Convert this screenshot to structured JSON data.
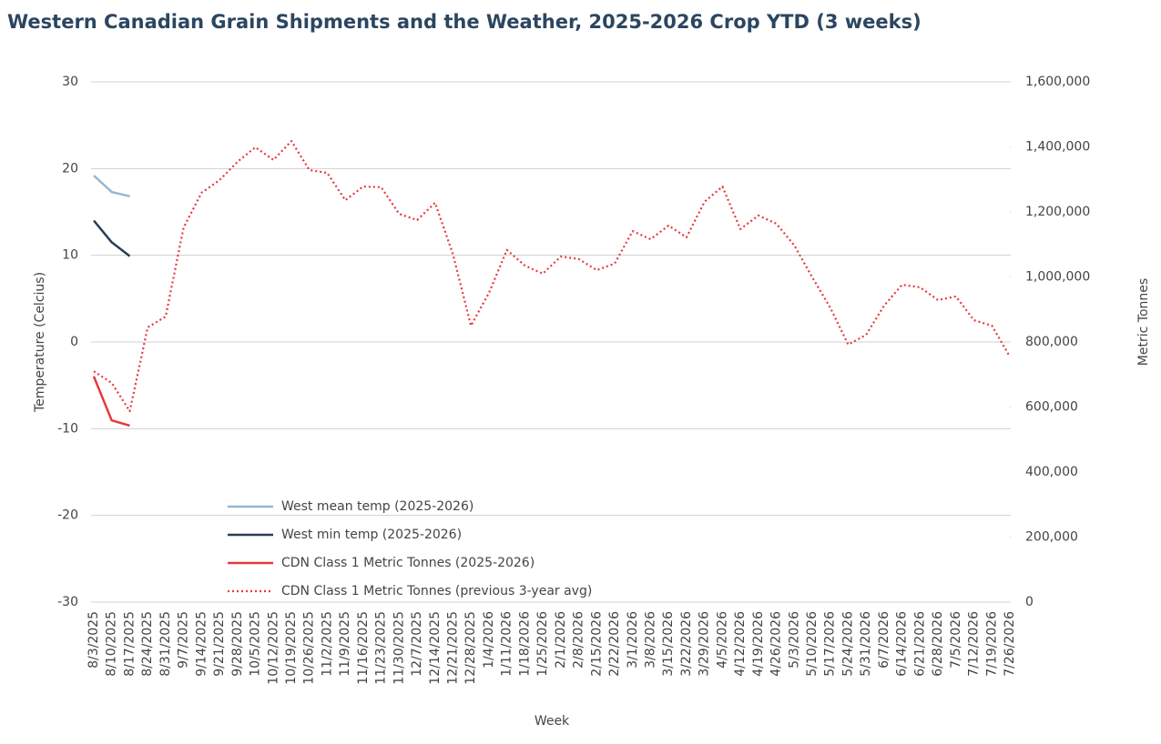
{
  "chart_data": {
    "type": "line",
    "title": "Western Canadian Grain Shipments and the Weather, 2025-2026 Crop YTD (3 weeks)",
    "x_label": "Week",
    "y_label": "Temperature (Celcius)",
    "y2_label": "Metric Tonnes",
    "categories": [
      "8/3/2025",
      "8/10/2025",
      "8/17/2025",
      "8/24/2025",
      "8/31/2025",
      "9/7/2025",
      "9/14/2025",
      "9/21/2025",
      "9/28/2025",
      "10/5/2025",
      "10/12/2025",
      "10/19/2025",
      "10/26/2025",
      "11/2/2025",
      "11/9/2025",
      "11/16/2025",
      "11/23/2025",
      "11/30/2025",
      "12/7/2025",
      "12/14/2025",
      "12/21/2025",
      "12/28/2025",
      "1/4/2026",
      "1/11/2026",
      "1/18/2026",
      "1/25/2026",
      "2/1/2026",
      "2/8/2026",
      "2/15/2026",
      "2/22/2026",
      "3/1/2026",
      "3/8/2026",
      "3/15/2026",
      "3/22/2026",
      "3/29/2026",
      "4/5/2026",
      "4/12/2026",
      "4/19/2026",
      "4/26/2026",
      "5/3/2026",
      "5/10/2026",
      "5/17/2026",
      "5/24/2026",
      "5/31/2026",
      "6/7/2026",
      "6/14/2026",
      "6/21/2026",
      "6/28/2026",
      "7/5/2026",
      "7/12/2026",
      "7/19/2026",
      "7/26/2026"
    ],
    "ylim": [
      -30,
      30
    ],
    "yticks": [
      -30,
      -20,
      -10,
      0,
      10,
      20,
      30
    ],
    "y2lim": [
      0,
      1600000
    ],
    "y2ticks": [
      0,
      {
        "value": 200000,
        "label": "200,000"
      },
      {
        "value": 400000,
        "label": "400,000"
      },
      {
        "value": 600000,
        "label": "600,000"
      },
      {
        "value": 800000,
        "label": "800,000"
      },
      {
        "value": 1000000,
        "label": "1,000,000"
      },
      {
        "value": 1200000,
        "label": "1,200,000"
      },
      {
        "value": 1400000,
        "label": "1,400,000"
      },
      {
        "value": 1600000,
        "label": "1,600,000"
      }
    ],
    "grid": true,
    "series": [
      {
        "name": "West mean temp (2025-2026)",
        "color": "#95b8d1",
        "axis": "y",
        "values": [
          19.2,
          17.3,
          16.8,
          null,
          null,
          null,
          null,
          null,
          null,
          null,
          null,
          null,
          null,
          null,
          null,
          null,
          null,
          null,
          null,
          null,
          null,
          null,
          null,
          null,
          null,
          null,
          null,
          null,
          null,
          null,
          null,
          null,
          null,
          null,
          null,
          null,
          null,
          null,
          null,
          null,
          null,
          null,
          null,
          null,
          null,
          null,
          null,
          null,
          null,
          null,
          null,
          null
        ]
      },
      {
        "name": "West min temp (2025-2026)",
        "color": "#243f5a",
        "axis": "y",
        "values": [
          14.0,
          11.5,
          9.9,
          null,
          null,
          null,
          null,
          null,
          null,
          null,
          null,
          null,
          null,
          null,
          null,
          null,
          null,
          null,
          null,
          null,
          null,
          null,
          null,
          null,
          null,
          null,
          null,
          null,
          null,
          null,
          null,
          null,
          null,
          null,
          null,
          null,
          null,
          null,
          null,
          null,
          null,
          null,
          null,
          null,
          null,
          null,
          null,
          null,
          null,
          null,
          null,
          null
        ]
      },
      {
        "name": "CDN Class 1 Metric Tonnes (2025-2026)",
        "color": "#e8383d",
        "axis": "y2",
        "values": [
          694000,
          559000,
          543000,
          null,
          null,
          null,
          null,
          null,
          null,
          null,
          null,
          null,
          null,
          null,
          null,
          null,
          null,
          null,
          null,
          null,
          null,
          null,
          null,
          null,
          null,
          null,
          null,
          null,
          null,
          null,
          null,
          null,
          null,
          null,
          null,
          null,
          null,
          null,
          null,
          null,
          null,
          null,
          null,
          null,
          null,
          null,
          null,
          null,
          null,
          null,
          null,
          null
        ]
      },
      {
        "name": "CDN Class 1 Metric Tonnes (previous 3-year avg)",
        "color": "#e8383d",
        "axis": "y2",
        "dashed": true,
        "values": [
          710000,
          674000,
          587000,
          845000,
          878000,
          1152000,
          1259000,
          1298000,
          1354000,
          1399000,
          1360000,
          1418000,
          1329000,
          1320000,
          1236000,
          1278000,
          1276000,
          1194000,
          1175000,
          1228000,
          1069000,
          850000,
          951000,
          1083000,
          1035000,
          1010000,
          1063000,
          1055000,
          1021000,
          1041000,
          1141000,
          1116000,
          1158000,
          1122000,
          1231000,
          1278000,
          1147000,
          1189000,
          1164000,
          1097000,
          999000,
          906000,
          792000,
          822000,
          912000,
          976000,
          968000,
          929000,
          940000,
          867000,
          850000,
          755000
        ]
      }
    ]
  }
}
